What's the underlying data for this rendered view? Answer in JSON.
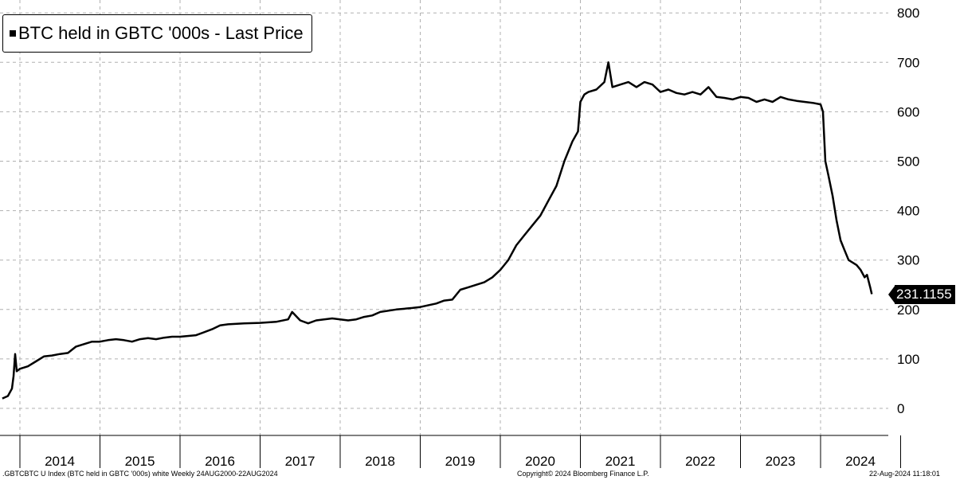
{
  "chart_data": {
    "type": "line",
    "title": "",
    "xlabel": "",
    "ylabel": "",
    "legend": {
      "label": "BTC held in GBTC '000s - Last Price",
      "placement": "top-left"
    },
    "last_value_label": "231.1155",
    "x_tick_labels": [
      "2014",
      "2015",
      "2016",
      "2017",
      "2018",
      "2019",
      "2020",
      "2021",
      "2022",
      "2023",
      "2024"
    ],
    "y_tick_labels": [
      "0",
      "100",
      "200",
      "300",
      "400",
      "500",
      "600",
      "700",
      "800"
    ],
    "ylim": [
      -55,
      800
    ],
    "xlim": [
      2013.75,
      2024.95
    ],
    "grid": true,
    "y_axis_side": "right",
    "line_color": "#000000",
    "series": [
      {
        "name": "BTC held in GBTC '000s - Last Price",
        "x": [
          2013.78,
          2013.85,
          2013.9,
          2013.92,
          2013.94,
          2013.96,
          2014.0,
          2014.1,
          2014.2,
          2014.3,
          2014.4,
          2014.5,
          2014.6,
          2014.7,
          2014.8,
          2014.9,
          2015.0,
          2015.1,
          2015.2,
          2015.3,
          2015.4,
          2015.5,
          2015.6,
          2015.7,
          2015.8,
          2015.9,
          2016.0,
          2016.2,
          2016.4,
          2016.5,
          2016.6,
          2016.8,
          2017.0,
          2017.2,
          2017.35,
          2017.4,
          2017.5,
          2017.6,
          2017.7,
          2017.8,
          2017.9,
          2018.0,
          2018.1,
          2018.2,
          2018.3,
          2018.4,
          2018.5,
          2018.7,
          2018.9,
          2019.0,
          2019.2,
          2019.3,
          2019.4,
          2019.5,
          2019.6,
          2019.8,
          2019.9,
          2020.0,
          2020.1,
          2020.2,
          2020.3,
          2020.4,
          2020.5,
          2020.6,
          2020.7,
          2020.8,
          2020.9,
          2020.97,
          2021.0,
          2021.05,
          2021.1,
          2021.2,
          2021.3,
          2021.35,
          2021.4,
          2021.5,
          2021.6,
          2021.7,
          2021.8,
          2021.9,
          2022.0,
          2022.1,
          2022.2,
          2022.3,
          2022.4,
          2022.5,
          2022.6,
          2022.7,
          2022.8,
          2022.9,
          2023.0,
          2023.1,
          2023.2,
          2023.3,
          2023.4,
          2023.5,
          2023.6,
          2023.7,
          2023.8,
          2023.9,
          2024.0,
          2024.03,
          2024.06,
          2024.1,
          2024.15,
          2024.2,
          2024.25,
          2024.3,
          2024.35,
          2024.4,
          2024.45,
          2024.5,
          2024.55,
          2024.58,
          2024.62,
          2024.64
        ],
        "values": [
          20,
          25,
          40,
          65,
          110,
          75,
          80,
          85,
          95,
          105,
          107,
          110,
          112,
          125,
          130,
          135,
          135,
          138,
          140,
          138,
          135,
          140,
          142,
          140,
          143,
          145,
          145,
          148,
          160,
          168,
          170,
          172,
          173,
          175,
          180,
          195,
          178,
          172,
          178,
          180,
          182,
          180,
          178,
          180,
          185,
          188,
          195,
          200,
          203,
          205,
          212,
          218,
          220,
          240,
          245,
          255,
          265,
          280,
          300,
          330,
          350,
          370,
          390,
          420,
          450,
          500,
          540,
          560,
          620,
          635,
          640,
          645,
          660,
          700,
          650,
          655,
          660,
          650,
          660,
          655,
          640,
          645,
          638,
          635,
          640,
          635,
          650,
          630,
          628,
          625,
          630,
          628,
          620,
          625,
          620,
          630,
          625,
          622,
          620,
          618,
          615,
          600,
          500,
          470,
          430,
          380,
          340,
          320,
          300,
          295,
          290,
          280,
          265,
          270,
          245,
          231.1155
        ]
      }
    ]
  },
  "footer": {
    "left": ".GBTCBTC U Index (BTC held in GBTC '000s) white  Weekly 24AUG2000-22AUG2024",
    "center": "Copyright© 2024 Bloomberg Finance L.P.",
    "right": "22-Aug-2024 11:18:01"
  }
}
